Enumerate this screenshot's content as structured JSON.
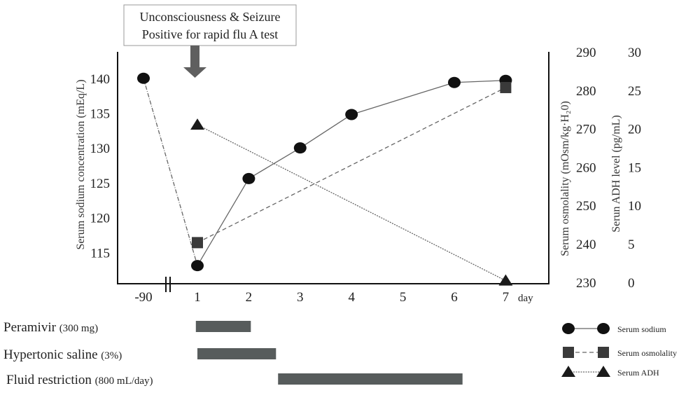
{
  "chart_data": {
    "type": "line",
    "annotation": [
      "Unconsciousness & Seizure",
      "Positive for rapid flu A test"
    ],
    "x": [
      -90,
      1,
      2,
      3,
      4,
      5,
      6,
      7
    ],
    "x_tick_labels": [
      "-90",
      "1",
      "2",
      "3",
      "4",
      "5",
      "6",
      "7"
    ],
    "xlabel": "day",
    "axis_break_between": [
      -90,
      1
    ],
    "y_left": {
      "label": "Serum sodium concentration (mEq/L)",
      "ticks": [
        115,
        120,
        125,
        130,
        135,
        140
      ],
      "tick_labels": [
        "115",
        "120",
        "125",
        "130",
        "135",
        "140"
      ],
      "range": [
        110.5,
        143.8
      ]
    },
    "y_right1": {
      "label": "Serum osmolality (mOsm/kg·H₂0)",
      "ticks": [
        230,
        240,
        250,
        260,
        270,
        280,
        290
      ],
      "tick_labels": [
        "230",
        "240",
        "250",
        "260",
        "270",
        "280",
        "290"
      ],
      "range": [
        229.6,
        290
      ]
    },
    "y_right2": {
      "label": "Serun ADH level (pg/mL)",
      "ticks": [
        0,
        5,
        10,
        15,
        20,
        25,
        30
      ],
      "tick_labels": [
        "0",
        "5",
        "10",
        "15",
        "20",
        "25",
        "30"
      ],
      "range": [
        -0.2,
        30
      ]
    },
    "series": [
      {
        "name": "Serum sodium",
        "axis": "y_left",
        "marker": "circle",
        "points": [
          [
            -90,
            140
          ],
          [
            1,
            113.1
          ],
          [
            2,
            125.6
          ],
          [
            3,
            130
          ],
          [
            4,
            134.8
          ],
          [
            6,
            139.4
          ],
          [
            7,
            139.7
          ]
        ]
      },
      {
        "name": "Serum osmolality",
        "axis": "y_right1",
        "marker": "square",
        "points": [
          [
            1,
            240.3
          ],
          [
            7,
            280.7
          ]
        ]
      },
      {
        "name": "Serum ADH",
        "axis": "y_right2",
        "marker": "triangle",
        "points": [
          [
            1,
            20.5
          ],
          [
            7,
            0.2
          ]
        ]
      }
    ],
    "treatments": [
      {
        "name": "Peramivir",
        "dose": "(300 mg)",
        "start": 0.97,
        "end": 2.04
      },
      {
        "name": "Hypertonic saline",
        "dose": "(3%)",
        "start": 1.0,
        "end": 2.53
      },
      {
        "name": "Fluid restriction",
        "dose": "(800 mL/day)",
        "start": 2.57,
        "end": 6.16
      }
    ],
    "legend": {
      "placement": "bottom-right",
      "entries": [
        "Serum sodium",
        "Serum osmolality",
        "Serum ADH"
      ]
    },
    "colors": {
      "marker": "#111111",
      "square": "#3a3a3a",
      "bar": "#575c5c",
      "line": "#666666",
      "arrow": "#5f5f5f"
    }
  }
}
